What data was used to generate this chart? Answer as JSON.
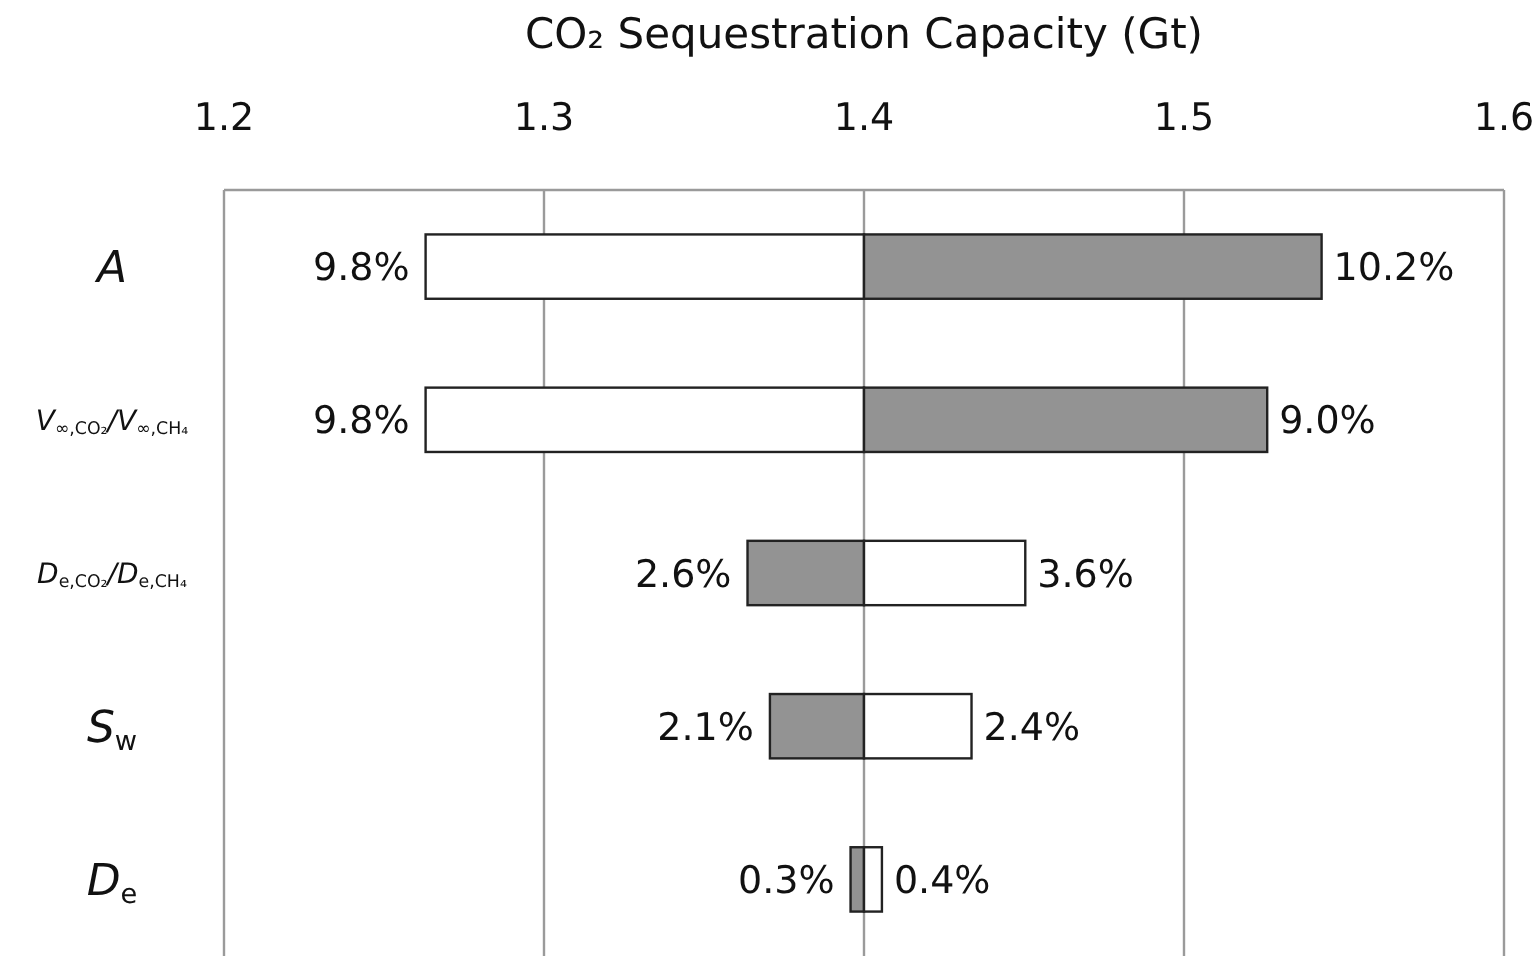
{
  "chart_data": {
    "type": "bar",
    "orientation": "horizontal",
    "title": "CO₂ Sequestration Capacity (Gt)",
    "categories": [
      "A",
      "V$_{∞,CO₂}$/V$_{∞,CH₄}$",
      "D$_{e,CO₂}$/D$_{e,CH₄}$",
      "S$_{w}$",
      "D$_{e}$"
    ],
    "series": [
      {
        "colors": [
          "#ffffff",
          "#ffffff",
          "#939393",
          "#939393",
          "#939393"
        ],
        "base": [
          1.263,
          1.263,
          1.3636,
          1.3706,
          1.3958
        ],
        "values": [
          0.137,
          0.137,
          0.0364,
          0.0294,
          0.0042
        ]
      },
      {
        "colors": [
          "#939393",
          "#939393",
          "#ffffff",
          "#ffffff",
          "#ffffff"
        ],
        "base": [
          1.4,
          1.4,
          1.4,
          1.4,
          1.4
        ],
        "values": [
          0.143,
          0.126,
          0.0504,
          0.0336,
          0.0056
        ]
      }
    ],
    "annotations": [
      {
        "text": "9.8%",
        "x": 1.263,
        "y": "A"
      },
      {
        "text": "10.2%",
        "x": 1.543,
        "y": "A"
      },
      {
        "text": "9.8%",
        "x": 1.263,
        "y": "V$_{∞,CO₂}$/V$_{∞,CH₄}$"
      },
      {
        "text": "9.0%",
        "x": 1.526,
        "y": "V$_{∞,CO₂}$/V$_{∞,CH₄}$"
      },
      {
        "text": "2.6%",
        "x": 1.3636,
        "y": "D$_{e,CO₂}$/D$_{e,CH₄}$"
      },
      {
        "text": "3.6%",
        "x": 1.4504,
        "y": "D$_{e,CO₂}$/D$_{e,CH₄}$"
      },
      {
        "text": "2.1%",
        "x": 1.3706,
        "y": "S$_{w}$"
      },
      {
        "text": "2.4%",
        "x": 1.4336,
        "y": "S$_{w}$"
      },
      {
        "text": "0.3%",
        "x": 1.3958,
        "y": "D$_{e}$"
      },
      {
        "text": "0.4%",
        "x": 1.4056,
        "y": "D$_{e}$"
      }
    ],
    "xlim": [
      1.2,
      1.6
    ],
    "xticks": [
      1.2,
      1.3,
      1.4,
      1.5,
      1.6
    ],
    "grid": "x"
  }
}
